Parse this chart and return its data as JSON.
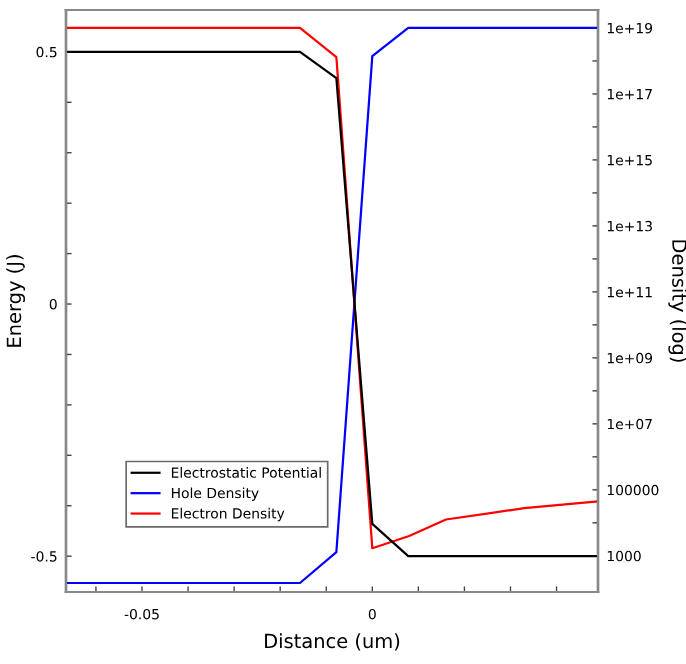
{
  "chart_data": {
    "type": "line",
    "xlabel": "Distance (um)",
    "ylabel": "Energy (J)",
    "y2label": "Density (log)",
    "xlim": [
      -0.0665,
      0.049
    ],
    "xticks": [
      -0.05,
      0,
      {
        "value": -0.06,
        "label": null
      },
      {
        "value": -0.04,
        "label": null
      },
      {
        "value": -0.03,
        "label": null
      },
      {
        "value": -0.02,
        "label": null
      },
      {
        "value": -0.01,
        "label": null
      },
      {
        "value": 0.01,
        "label": null
      },
      {
        "value": 0.02,
        "label": null
      },
      {
        "value": 0.03,
        "label": null
      },
      {
        "value": 0.04,
        "label": null
      }
    ],
    "ylim": [
      -0.571,
      0.583
    ],
    "yticks": [
      -0.5,
      0,
      0.5,
      {
        "value": -0.4,
        "label": null
      },
      {
        "value": -0.3,
        "label": null
      },
      {
        "value": -0.2,
        "label": null
      },
      {
        "value": -0.1,
        "label": null
      },
      {
        "value": 0.1,
        "label": null
      },
      {
        "value": 0.2,
        "label": null
      },
      {
        "value": 0.3,
        "label": null
      },
      {
        "value": 0.4,
        "label": null
      }
    ],
    "y2lim": [
      80,
      3.5e+19
    ],
    "y2ticks": [
      {
        "value": 1000,
        "label": "1000"
      },
      {
        "value": 100000,
        "label": "100000"
      },
      {
        "value": 10000000.0,
        "label": "1e+07"
      },
      {
        "value": 1000000000.0,
        "label": "1e+09"
      },
      {
        "value": 100000000000.0,
        "label": "1e+11"
      },
      {
        "value": 10000000000000.0,
        "label": "1e+13"
      },
      {
        "value": 1000000000000000.0,
        "label": "1e+15"
      },
      {
        "value": 1e+17,
        "label": "1e+17"
      },
      {
        "value": 1e+19,
        "label": "1e+19"
      },
      {
        "value": 10000,
        "label": null
      },
      {
        "value": 1000000.0,
        "label": null
      },
      {
        "value": 100000000.0,
        "label": null
      },
      {
        "value": 10000000000.0,
        "label": null
      },
      {
        "value": 1000000000000.0,
        "label": null
      },
      {
        "value": 100000000000000.0,
        "label": null
      },
      {
        "value": 1e+16,
        "label": null
      },
      {
        "value": 1e+18,
        "label": null
      }
    ],
    "log": "y2",
    "legend": "lower left",
    "grid": false,
    "marker": "none",
    "line_style": "solid",
    "series": [
      {
        "name": "Electrostatic Potential",
        "color": "#000000",
        "x": [
          -0.0665,
          -0.0157,
          -0.0078,
          0.0,
          0.0078,
          0.049
        ],
        "values": [
          0.5,
          0.5,
          0.448,
          -0.436,
          -0.5,
          -0.5
        ]
      },
      {
        "name": "Hole Density",
        "color": "#0000ff",
        "axis": "y2",
        "x": [
          -0.0665,
          -0.0157,
          -0.0078,
          0.0,
          0.0078,
          0.049
        ],
        "values": [
          150,
          150,
          1300,
          1.4e+18,
          1e+19,
          1e+19
        ]
      },
      {
        "name": "Electron Density",
        "color": "#ff0000",
        "axis": "y2",
        "x": [
          -0.0665,
          -0.0157,
          -0.0078,
          0.0,
          0.008,
          0.016,
          0.026,
          0.033,
          0.049
        ],
        "values": [
          1e+19,
          1e+19,
          1.3e+18,
          1700,
          4000,
          12600,
          20000,
          28000,
          45000
        ]
      }
    ]
  }
}
